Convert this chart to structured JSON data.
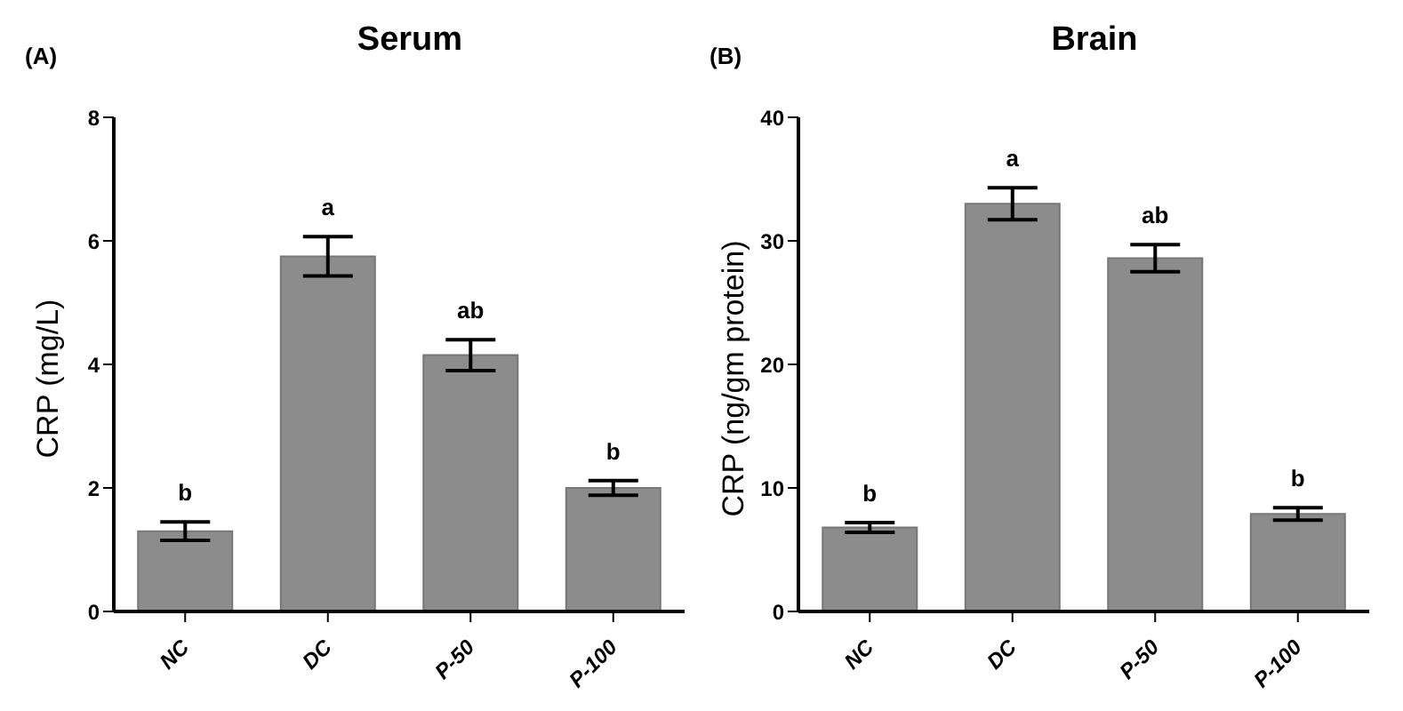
{
  "chart_data": [
    {
      "type": "bar",
      "title": "Serum",
      "ylabel": "CRP (mg/L)",
      "categories": [
        "NC",
        "DC",
        "P-50",
        "P-100"
      ],
      "values": [
        1.3,
        5.75,
        4.15,
        2.0
      ],
      "errors": [
        0.15,
        0.32,
        0.25,
        0.12
      ],
      "value_labels": [
        "b",
        "a",
        "ab",
        "b"
      ],
      "color": "#8c8c8c",
      "ylim": [
        0,
        8
      ],
      "yticks": [
        0,
        2,
        4,
        6,
        8
      ],
      "grid": false,
      "legend": false,
      "annotations": [
        "(A)"
      ]
    },
    {
      "type": "bar",
      "title": "Brain",
      "ylabel": "CRP (ng/gm protein)",
      "categories": [
        "NC",
        "DC",
        "P-50",
        "P-100"
      ],
      "values": [
        6.8,
        33.0,
        28.6,
        7.9
      ],
      "errors": [
        0.4,
        1.3,
        1.1,
        0.5
      ],
      "value_labels": [
        "b",
        "a",
        "ab",
        "b"
      ],
      "color": "#8c8c8c",
      "ylim": [
        0,
        40
      ],
      "yticks": [
        0,
        10,
        20,
        30,
        40
      ],
      "grid": false,
      "legend": false,
      "annotations": [
        "(B)"
      ]
    }
  ]
}
